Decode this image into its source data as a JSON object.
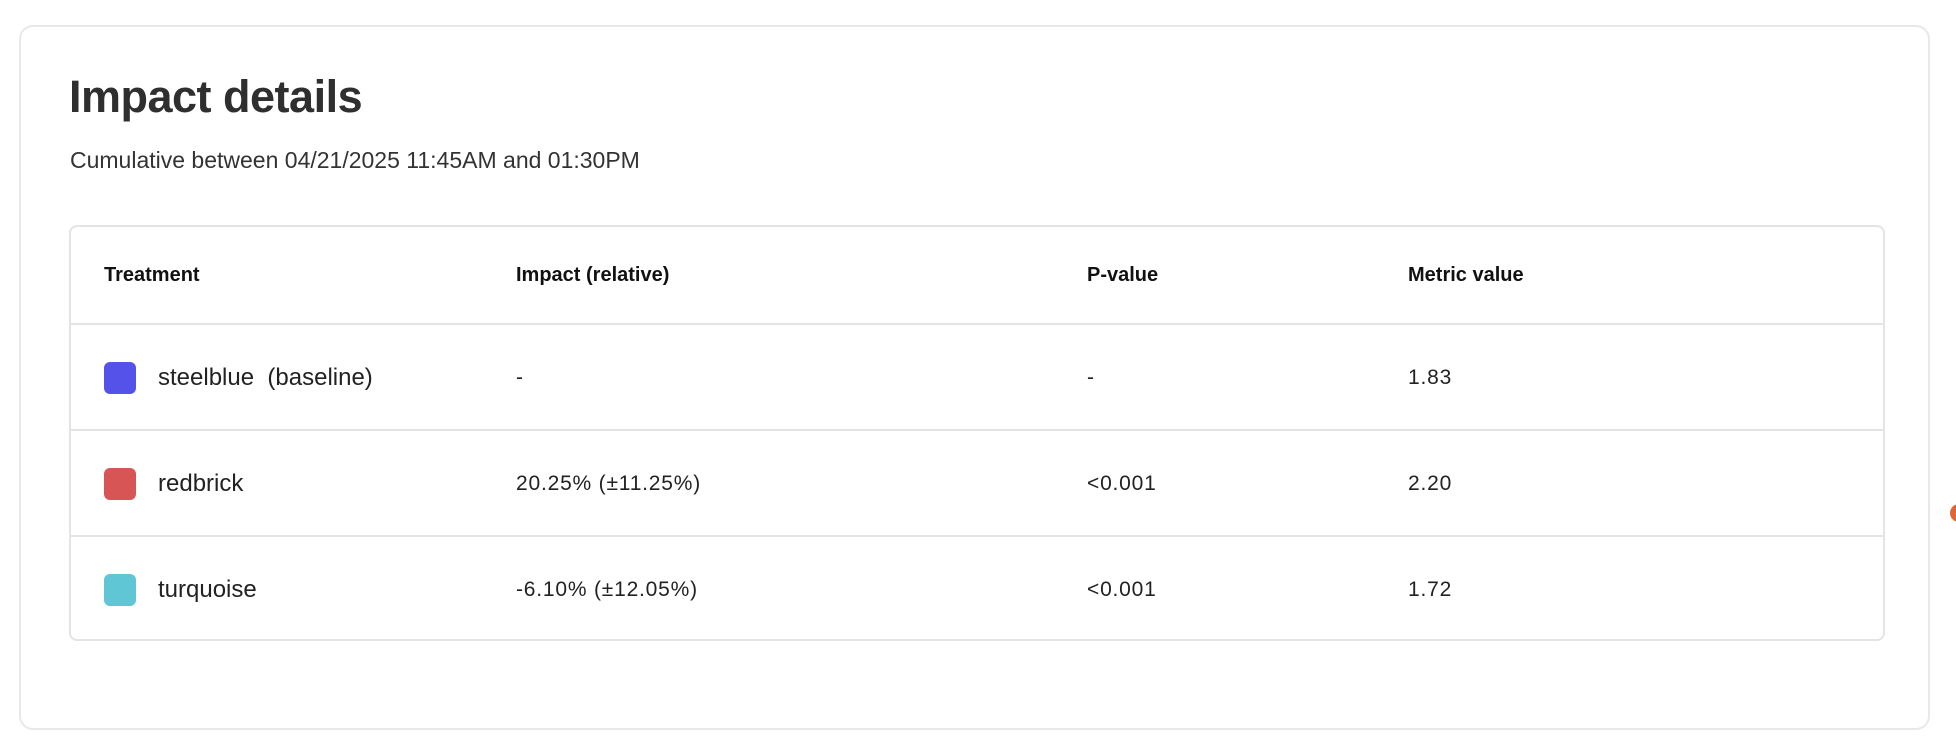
{
  "card": {
    "title": "Impact details",
    "subtitle": "Cumulative between 04/21/2025 11:45AM and 01:30PM"
  },
  "table": {
    "columns": [
      "Treatment",
      "Impact (relative)",
      "P-value",
      "Metric value"
    ],
    "rows": [
      {
        "treatment": "steelblue  (baseline)",
        "color": "#5552ea",
        "impact": "-",
        "p_value": "-",
        "metric_value": "1.83"
      },
      {
        "treatment": "redbrick",
        "color": "#d85555",
        "impact": "20.25% (±11.25%)",
        "p_value": "<0.001",
        "metric_value": "2.20"
      },
      {
        "treatment": "turquoise",
        "color": "#5ec6d4",
        "impact": "-6.10% (±12.05%)",
        "p_value": "<0.001",
        "metric_value": "1.72"
      }
    ]
  },
  "colors": {
    "edge_indicator": "#e0663a"
  }
}
